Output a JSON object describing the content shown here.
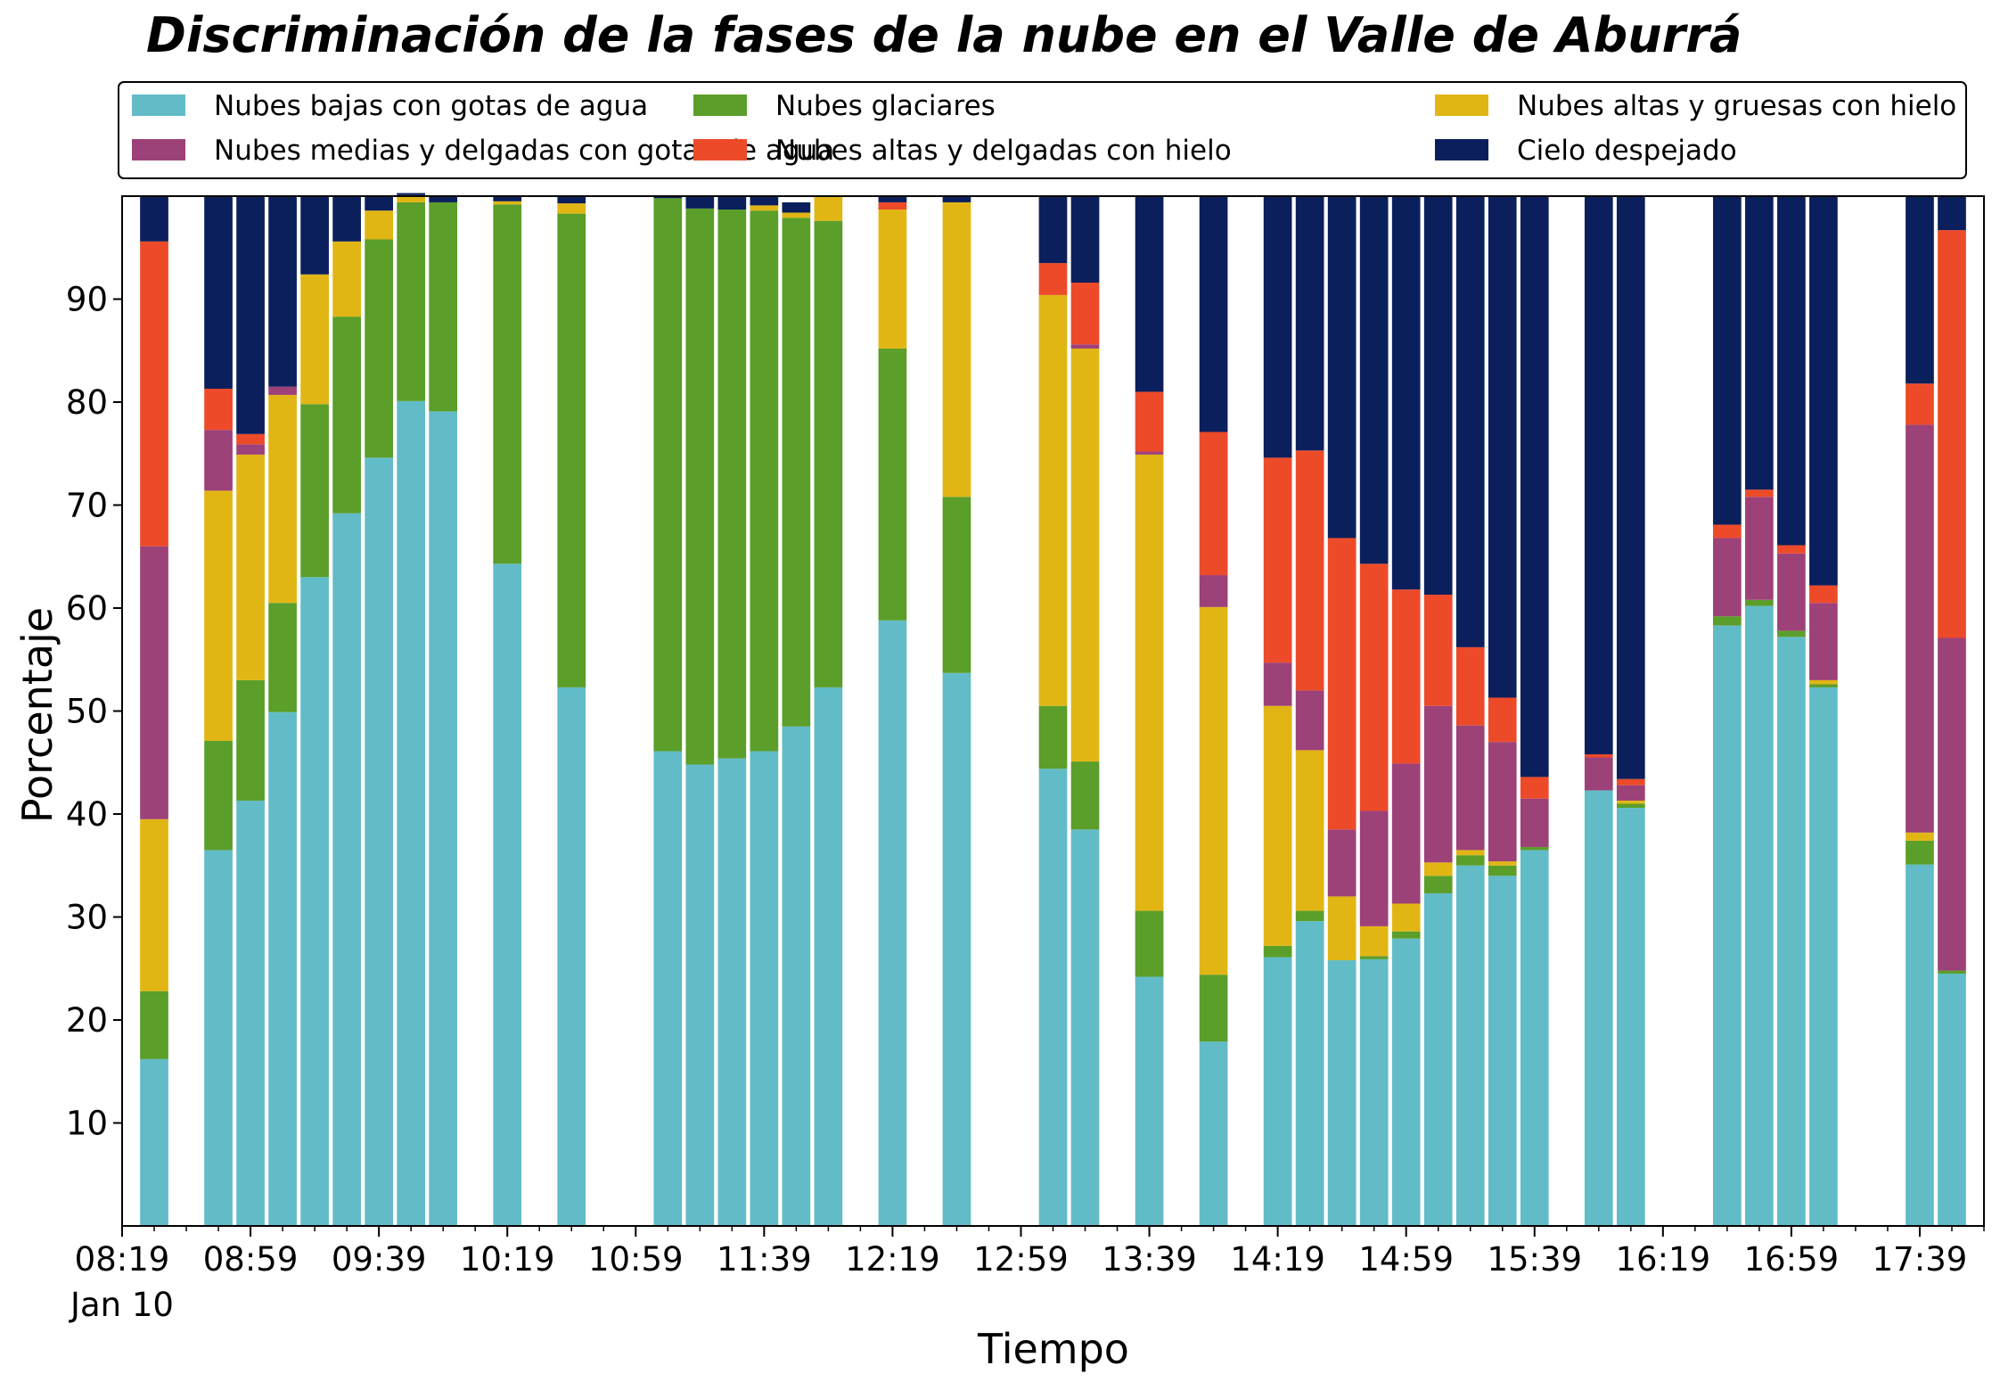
{
  "chart_data": {
    "type": "bar",
    "stacked": true,
    "title": "Discriminación de la fases de la nube en el Valle de Aburrá",
    "xlabel": "Tiempo",
    "ylabel": "Porcentaje",
    "ylim": [
      0,
      100
    ],
    "yticks": [
      10,
      20,
      30,
      40,
      50,
      60,
      70,
      80,
      90
    ],
    "xlim": [
      "08:19",
      "17:59"
    ],
    "xticks": [
      "08:19",
      "08:59",
      "09:39",
      "10:19",
      "10:59",
      "11:39",
      "12:19",
      "12:59",
      "13:39",
      "14:19",
      "14:59",
      "15:39",
      "16:19",
      "16:59",
      "17:39"
    ],
    "date_label": "Jan 10",
    "grid": false,
    "legend_position": "top, above plot",
    "x": [
      "08:29",
      "08:49",
      "08:59",
      "09:09",
      "09:19",
      "09:29",
      "09:39",
      "09:49",
      "09:59",
      "10:19",
      "10:39",
      "11:09",
      "11:19",
      "11:29",
      "11:39",
      "11:49",
      "11:59",
      "12:19",
      "12:39",
      "13:09",
      "13:19",
      "13:39",
      "13:59",
      "14:19",
      "14:29",
      "14:39",
      "14:49",
      "14:59",
      "15:09",
      "15:19",
      "15:29",
      "15:39",
      "15:59",
      "16:09",
      "16:39",
      "16:49",
      "16:59",
      "17:09",
      "17:39",
      "17:49"
    ],
    "series": [
      {
        "name": "Nubes bajas con gotas de agua",
        "color": "#62bcc7",
        "values": [
          16.2,
          36.5,
          41.3,
          49.9,
          63.0,
          69.2,
          74.6,
          80.1,
          79.1,
          64.3,
          52.3,
          46.1,
          44.8,
          45.4,
          46.1,
          48.5,
          52.3,
          58.8,
          53.7,
          44.4,
          38.5,
          24.2,
          17.9,
          26.1,
          29.6,
          25.8,
          25.9,
          27.9,
          32.3,
          35.0,
          34.0,
          36.5,
          42.3,
          40.6,
          58.3,
          60.2,
          57.2,
          52.3,
          35.1,
          24.5
        ]
      },
      {
        "name": "Nubes glaciares",
        "color": "#5b9e2a",
        "values": [
          6.6,
          10.6,
          11.7,
          10.6,
          16.8,
          19.1,
          21.2,
          19.3,
          20.3,
          34.9,
          46.0,
          53.7,
          54.0,
          53.3,
          52.5,
          49.4,
          45.3,
          26.4,
          17.1,
          6.1,
          6.6,
          6.4,
          6.5,
          1.1,
          1.0,
          0,
          0.3,
          0.7,
          1.7,
          1.0,
          1.0,
          0.3,
          0,
          0.4,
          0.9,
          0.6,
          0.6,
          0.3,
          2.3,
          0.3
        ]
      },
      {
        "name": "Nubes altas y gruesas con hielo",
        "color": "#e1b614",
        "values": [
          16.7,
          24.3,
          21.9,
          20.2,
          12.6,
          7.3,
          2.8,
          0.7,
          0,
          0.3,
          1.0,
          0,
          0,
          0,
          0.5,
          0.5,
          2.4,
          13.5,
          28.6,
          39.9,
          40.1,
          44.3,
          35.7,
          23.3,
          15.6,
          6.2,
          2.9,
          2.7,
          1.3,
          0.5,
          0.4,
          0,
          0,
          0.3,
          0,
          0,
          0,
          0.4,
          0.8,
          0
        ]
      },
      {
        "name": "Nubes medias y delgadas con gotas de agua",
        "color": "#9d4179",
        "values": [
          26.5,
          5.9,
          1.0,
          0.8,
          0,
          0,
          0,
          0,
          0,
          0,
          0,
          0,
          0,
          0,
          0,
          0,
          0,
          0,
          0,
          0,
          0.4,
          0.3,
          3.1,
          4.2,
          5.8,
          6.5,
          11.2,
          13.6,
          15.2,
          12.1,
          11.6,
          4.7,
          3.2,
          1.5,
          7.6,
          10.0,
          7.5,
          7.5,
          39.6,
          32.3
        ]
      },
      {
        "name": "Nubes altas y delgadas con hielo",
        "color": "#ed4a29",
        "values": [
          29.6,
          4.0,
          1.0,
          0,
          0,
          0,
          0,
          0,
          0,
          0,
          0,
          0,
          0,
          0,
          0,
          0,
          0,
          0.7,
          0,
          3.1,
          6.0,
          5.8,
          13.9,
          19.9,
          23.3,
          28.3,
          24.0,
          16.9,
          10.8,
          7.6,
          4.3,
          2.1,
          0.3,
          0.6,
          1.3,
          0.7,
          0.8,
          1.7,
          4.0,
          39.6
        ]
      },
      {
        "name": "Cielo despejado",
        "color": "#0b1f5c",
        "values": [
          4.4,
          18.7,
          23.1,
          18.5,
          7.6,
          4.4,
          1.4,
          0.2,
          0.6,
          0.5,
          0.7,
          0.2,
          1.2,
          1.3,
          0.9,
          1.0,
          0,
          0.6,
          0.6,
          6.5,
          8.4,
          19.0,
          22.9,
          25.4,
          24.7,
          33.2,
          35.7,
          38.2,
          38.7,
          43.8,
          48.7,
          56.4,
          54.2,
          56.6,
          31.9,
          28.5,
          33.9,
          37.8,
          18.2,
          3.3
        ]
      }
    ]
  }
}
